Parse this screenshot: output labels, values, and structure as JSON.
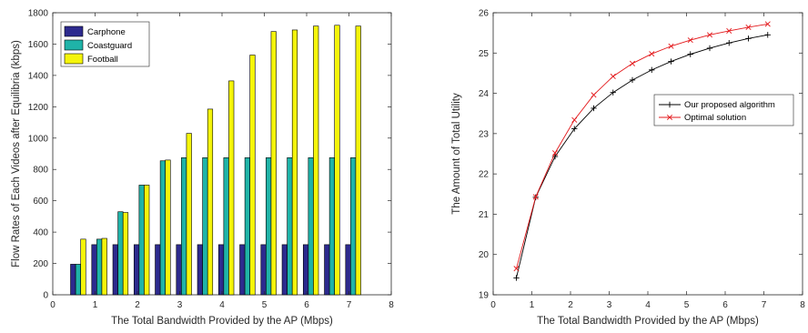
{
  "chart_data": [
    {
      "type": "bar",
      "xlabel": "The Total Bandwidth Provided by the AP (Mbps)",
      "ylabel": "Flow Rates of Each Videos after Equilibria (kbps)",
      "xlim": [
        0,
        8
      ],
      "ylim": [
        0,
        1800
      ],
      "xticks": [
        0,
        1,
        2,
        3,
        4,
        5,
        6,
        7,
        8
      ],
      "yticks": [
        0,
        200,
        400,
        600,
        800,
        1000,
        1200,
        1400,
        1600,
        1800
      ],
      "legend_position": "top-left",
      "x": [
        0.6,
        1.1,
        1.6,
        2.1,
        2.6,
        3.1,
        3.6,
        4.1,
        4.6,
        5.1,
        5.6,
        6.1,
        6.6,
        7.1
      ],
      "series": [
        {
          "name": "Carphone",
          "color": "#2d2a8e",
          "values": [
            195,
            320,
            320,
            320,
            320,
            320,
            320,
            320,
            320,
            320,
            320,
            320,
            320,
            320
          ]
        },
        {
          "name": "Coastguard",
          "color": "#1fb3a8",
          "values": [
            195,
            355,
            530,
            700,
            855,
            875,
            875,
            875,
            875,
            875,
            875,
            875,
            875,
            875
          ]
        },
        {
          "name": "Football",
          "color": "#f5f50a",
          "values": [
            355,
            360,
            525,
            700,
            860,
            1030,
            1185,
            1365,
            1530,
            1680,
            1690,
            1715,
            1720,
            1715
          ]
        }
      ]
    },
    {
      "type": "line",
      "xlabel": "The Total Bandwidth Provided by the AP (Mbps)",
      "ylabel": "The Amount of Total Utility",
      "xlim": [
        0,
        8
      ],
      "ylim": [
        19,
        26
      ],
      "xticks": [
        0,
        1,
        2,
        3,
        4,
        5,
        6,
        7,
        8
      ],
      "yticks": [
        19,
        20,
        21,
        22,
        23,
        24,
        25,
        26
      ],
      "legend_position": "center-right",
      "x": [
        0.6,
        1.1,
        1.6,
        2.1,
        2.6,
        3.1,
        3.6,
        4.1,
        4.6,
        5.1,
        5.6,
        6.1,
        6.6,
        7.1
      ],
      "series": [
        {
          "name": "Our proposed algorithm",
          "color": "#000000",
          "marker": "plus",
          "values": [
            19.42,
            21.42,
            22.43,
            23.12,
            23.63,
            24.02,
            24.33,
            24.58,
            24.79,
            24.97,
            25.12,
            25.25,
            25.36,
            25.45
          ]
        },
        {
          "name": "Optimal solution",
          "color": "#e3191c",
          "marker": "x",
          "values": [
            19.65,
            21.43,
            22.52,
            23.34,
            23.96,
            24.42,
            24.74,
            24.98,
            25.17,
            25.32,
            25.45,
            25.55,
            25.64,
            25.72
          ]
        }
      ]
    }
  ]
}
